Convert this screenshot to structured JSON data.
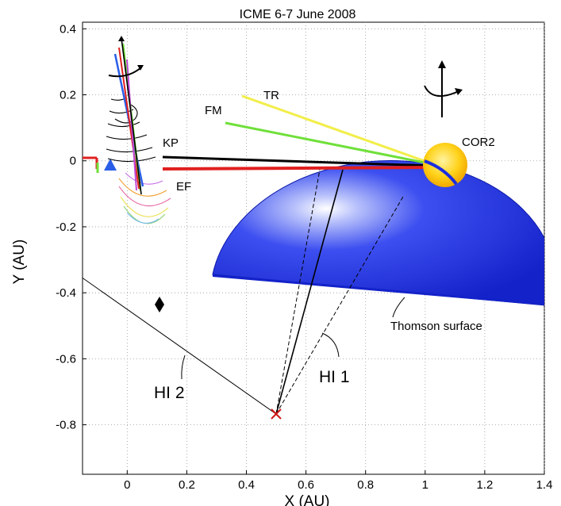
{
  "title": "ICME  6-7 June 2008",
  "axes": {
    "xlabel": "X (AU)",
    "ylabel": "Y (AU)",
    "xlim": [
      -0.15,
      1.4
    ],
    "ylim": [
      -0.95,
      0.42
    ],
    "grid": true,
    "xticks": [
      {
        "v": 0,
        "label": "0"
      },
      {
        "v": 0.2,
        "label": "0.2"
      },
      {
        "v": 0.4,
        "label": "0.4"
      },
      {
        "v": 0.6,
        "label": "0.6"
      },
      {
        "v": 0.8,
        "label": "0.8"
      },
      {
        "v": 1,
        "label": "1"
      },
      {
        "v": 1.2,
        "label": "1.2"
      },
      {
        "v": 1.4,
        "label": "1.4"
      }
    ],
    "yticks": [
      {
        "v": 0.4,
        "label": "0.4"
      },
      {
        "v": 0.2,
        "label": "0.2"
      },
      {
        "v": 0,
        "label": "0"
      },
      {
        "v": -0.2,
        "label": "-0.2"
      },
      {
        "v": -0.4,
        "label": "-0.4"
      },
      {
        "v": -0.6,
        "label": "-0.6"
      },
      {
        "v": -0.8,
        "label": "-0.8"
      }
    ]
  },
  "annotations": {
    "tr": "TR",
    "fm": "FM",
    "kp": "KP",
    "ef": "EF",
    "cor2": "COR2",
    "thomson": "Thomson surface",
    "hi1": "HI 1",
    "hi2": "HI 2"
  },
  "colors": {
    "sphere_dark": "#1a2ee0",
    "sphere_light": "#ffffff",
    "sun": "#ffd21a",
    "tr_line": "#f2ee4a",
    "fm_line": "#6fe03a",
    "kp_line": "#000000",
    "ef_line": "#e02020",
    "observer": "#d01818"
  },
  "chart_data": {
    "type": "diagram",
    "title": "ICME  6-7 June 2008",
    "xlabel": "X (AU)",
    "ylabel": "Y (AU)",
    "xlim": [
      -0.15,
      1.4
    ],
    "ylim": [
      -0.95,
      0.42
    ],
    "observer": {
      "x": 0.53,
      "y": -0.8,
      "marker": "x"
    },
    "sun": {
      "label": "COR2",
      "x": 1.06,
      "y": 0.0
    },
    "diamond_marker": {
      "x": 0.15,
      "y": -0.44
    },
    "thomson_surface": {
      "label": "Thomson surface",
      "center": [
        0.76,
        -0.335
      ],
      "radius": 0.5
    },
    "model_lines": [
      {
        "label": "TR",
        "from": [
          0.4,
          0.22
        ],
        "to": [
          1.02,
          0.02
        ]
      },
      {
        "label": "FM",
        "from": [
          0.36,
          0.13
        ],
        "to": [
          1.03,
          0.01
        ]
      },
      {
        "label": "KP",
        "from": [
          0.17,
          0.03
        ],
        "to": [
          1.04,
          0.0
        ]
      },
      {
        "label": "EF",
        "from": [
          0.17,
          -0.005
        ],
        "to": [
          1.04,
          0.0
        ]
      }
    ],
    "hi_lines": [
      {
        "label": "HI 2",
        "from": [
          -0.15,
          -0.33
        ],
        "to": [
          0.53,
          -0.8
        ]
      },
      {
        "label": "HI 1",
        "from": [
          0.53,
          -0.8
        ],
        "to": [
          0.73,
          -0.02
        ],
        "style": "solid"
      },
      {
        "label": "HI 1 edge",
        "from": [
          0.53,
          -0.8
        ],
        "to": [
          0.65,
          -0.02
        ],
        "style": "dashed"
      },
      {
        "label": "HI 1 edge",
        "from": [
          0.53,
          -0.8
        ],
        "to": [
          0.93,
          -0.08
        ],
        "style": "dashed"
      }
    ]
  }
}
